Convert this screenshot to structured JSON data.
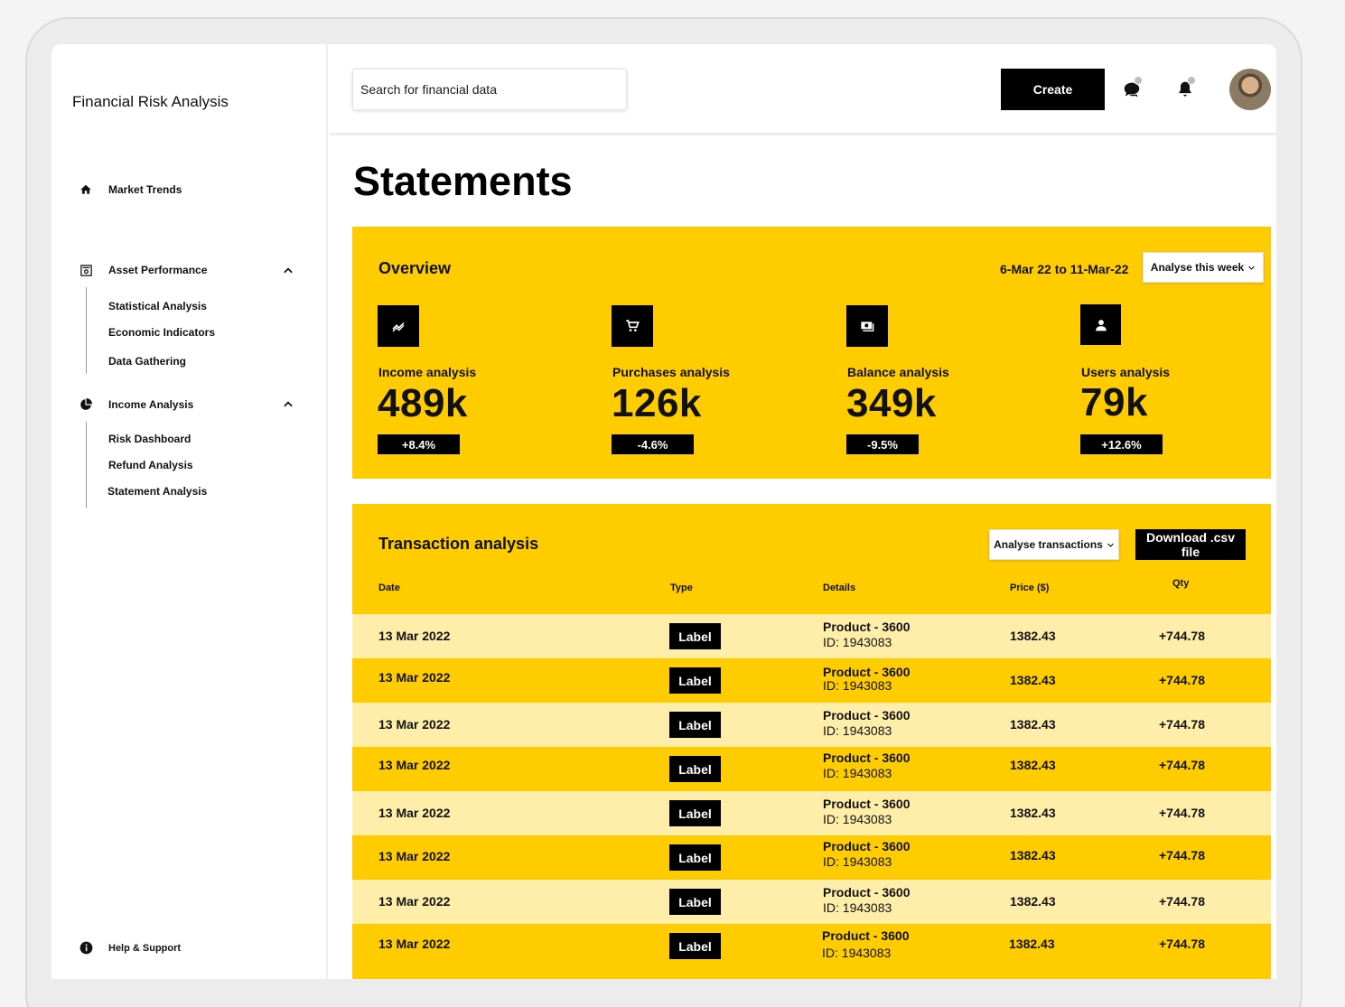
{
  "app": {
    "title": "Financial Risk Analysis"
  },
  "sidebar": {
    "market_trends": {
      "label": "Market Trends",
      "icon": "home-icon"
    },
    "asset_performance": {
      "label": "Asset Performance",
      "icon": "shield-doc-icon",
      "items": [
        "Statistical Analysis",
        "Economic Indicators",
        "Data Gathering"
      ]
    },
    "income_analysis": {
      "label": "Income Analysis",
      "icon": "pie-chart-icon",
      "items": [
        "Risk Dashboard",
        "Refund Analysis",
        "Statement Analysis"
      ]
    },
    "help": {
      "label": "Help & Support",
      "icon": "info-icon"
    }
  },
  "topbar": {
    "search_placeholder": "Search for financial data",
    "create_label": "Create"
  },
  "page": {
    "title": "Statements"
  },
  "overview": {
    "title": "Overview",
    "date_range": "6-Mar 22 to 11-Mar-22",
    "period_select": "Analyse this week",
    "stats": [
      {
        "label": "Income analysis",
        "value": "489k",
        "change": "+8.4%",
        "icon": "trend-icon"
      },
      {
        "label": "Purchases analysis",
        "value": "126k",
        "change": "-4.6%",
        "icon": "cart-icon"
      },
      {
        "label": "Balance analysis",
        "value": "349k",
        "change": "-9.5%",
        "icon": "cash-icon"
      },
      {
        "label": "Users analysis",
        "value": "79k",
        "change": "+12.6%",
        "icon": "user-icon"
      }
    ]
  },
  "transactions": {
    "title": "Transaction analysis",
    "filter_select": "Analyse transactions",
    "download_label": "Download .csv file",
    "columns": {
      "date": "Date",
      "type": "Type",
      "details": "Details",
      "price": "Price ($)",
      "qty": "Qty"
    },
    "rows": [
      {
        "date": "13 Mar 2022",
        "type": "Label",
        "product": "Product - 3600",
        "id": "ID: 1943083",
        "price": "1382.43",
        "qty": "+744.78"
      },
      {
        "date": "13 Mar 2022",
        "type": "Label",
        "product": "Product - 3600",
        "id": "ID: 1943083",
        "price": "1382.43",
        "qty": "+744.78"
      },
      {
        "date": "13 Mar 2022",
        "type": "Label",
        "product": "Product - 3600",
        "id": "ID: 1943083",
        "price": "1382.43",
        "qty": "+744.78"
      },
      {
        "date": "13 Mar 2022",
        "type": "Label",
        "product": "Product - 3600",
        "id": "ID: 1943083",
        "price": "1382.43",
        "qty": "+744.78"
      },
      {
        "date": "13 Mar 2022",
        "type": "Label",
        "product": "Product - 3600",
        "id": "ID: 1943083",
        "price": "1382.43",
        "qty": "+744.78"
      },
      {
        "date": "13 Mar 2022",
        "type": "Label",
        "product": "Product - 3600",
        "id": "ID: 1943083",
        "price": "1382.43",
        "qty": "+744.78"
      },
      {
        "date": "13 Mar 2022",
        "type": "Label",
        "product": "Product - 3600",
        "id": "ID: 1943083",
        "price": "1382.43",
        "qty": "+744.78"
      },
      {
        "date": "13 Mar 2022",
        "type": "Label",
        "product": "Product - 3600",
        "id": "ID: 1943083",
        "price": "1382.43",
        "qty": "+744.78"
      }
    ]
  },
  "colors": {
    "accent": "#ffcc00",
    "row_light": "#ffeeaa",
    "primary": "#000000"
  }
}
